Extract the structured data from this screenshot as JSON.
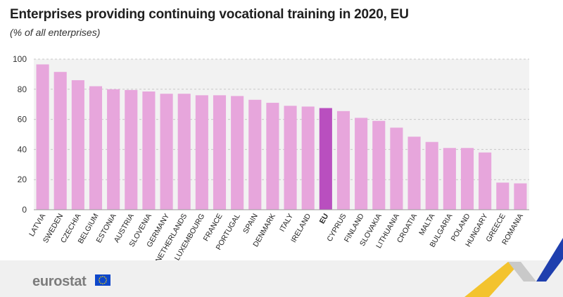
{
  "header": {
    "title": "Enterprises providing continuing vocational training in 2020, EU",
    "subtitle": "(% of all enterprises)"
  },
  "footer": {
    "logo_text": "eurostat"
  },
  "colors": {
    "bar": "#e7a6dc",
    "bar_highlight": "#b94fbf",
    "plot_bg": "#f2f2f2",
    "grid": "#c8c8c8",
    "footer_bg": "#f0f0f0",
    "flag_blue": "#0e47cb",
    "flag_stars": "#ffdd00",
    "accent_yellow": "#f3c32e",
    "accent_blue": "#1f3fae",
    "accent_grey": "#c9c9c9"
  },
  "chart_data": {
    "type": "bar",
    "title": "Enterprises providing continuing vocational training in 2020, EU",
    "subtitle": "(% of all enterprises)",
    "xlabel": "",
    "ylabel": "",
    "ylim": [
      0,
      100
    ],
    "yticks": [
      0,
      20,
      40,
      60,
      80,
      100
    ],
    "grid": true,
    "highlight": "EU",
    "categories": [
      "LATVIA",
      "SWEDEN",
      "CZECHIA",
      "BELGIUM",
      "ESTONIA",
      "AUSTRIA",
      "SLOVENIA",
      "GERMANY",
      "NETHERLANDS",
      "LUXEMBOURG",
      "FRANCE",
      "PORTUGAL",
      "SPAIN",
      "DENMARK",
      "ITALY",
      "IRELAND",
      "EU",
      "CYPRUS",
      "FINLAND",
      "SLOVAKIA",
      "LITHUANIA",
      "CROATIA",
      "MALTA",
      "BULGARIA",
      "POLAND",
      "HUNGARY",
      "GREECE",
      "ROMANIA"
    ],
    "values": [
      96.5,
      91.5,
      86,
      82,
      80,
      79.5,
      78.5,
      77,
      77,
      76,
      76,
      75.5,
      73,
      71,
      69,
      68.5,
      67.5,
      65.5,
      61,
      59,
      54.5,
      48.5,
      45,
      41,
      41,
      38,
      18,
      17.5
    ]
  }
}
